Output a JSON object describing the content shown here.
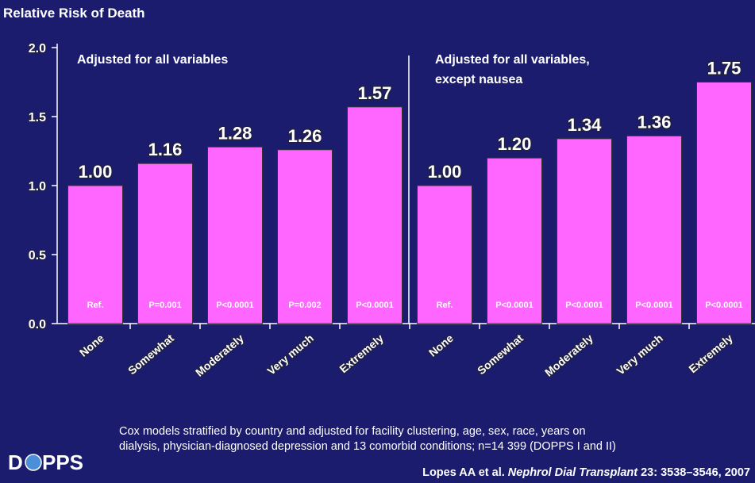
{
  "chart_data": {
    "type": "bar",
    "y_label": "Relative Risk of Death",
    "categories": [
      "None",
      "Somewhat",
      "Moderately",
      "Very much",
      "Extremely",
      "None",
      "Somewhat",
      "Moderately",
      "Very much",
      "Extremely"
    ],
    "values": [
      1,
      1.16,
      1.28,
      1.26,
      1.57,
      1,
      1.2,
      1.34,
      1.36,
      1.75
    ],
    "value_labels": [
      "1.00",
      "1.16",
      "1.28",
      "1.26",
      "1.57",
      "1.00",
      "1.20",
      "1.34",
      "1.36",
      "1.75"
    ],
    "p_labels": [
      "Ref.",
      "P=0.001",
      "P<0.0001",
      "P=0.002",
      "P<0.0001",
      "Ref.",
      "P<0.0001",
      "P<0.0001",
      "P<0.0001",
      "P<0.0001"
    ],
    "panels": [
      {
        "lines": [
          "Adjusted for all variables"
        ]
      },
      {
        "lines": [
          "Adjusted for all variables,",
          "except nausea"
        ]
      }
    ],
    "color": "#ff66ff",
    "ylim": [
      0,
      2
    ],
    "yticks": [
      {
        "value": 0,
        "label": "0.0"
      },
      {
        "value": 0.5,
        "label": "0.5"
      },
      {
        "value": 1,
        "label": "1.0"
      },
      {
        "value": 1.5,
        "label": "1.5"
      },
      {
        "value": 2,
        "label": "2.0"
      }
    ]
  },
  "footnote": [
    "Cox models stratified by country and adjusted for facility clustering, age, sex, race, years on",
    "dialysis, physician-diagnosed depression and 13 comorbid conditions; n=14 399 (DOPPS I and II)"
  ],
  "citation": {
    "authors": "Lopes AA et al. ",
    "journal": "Nephrol  Dial Transplant",
    "ref": " 23: 3538–3546, 2007"
  },
  "logo": {
    "left": "D",
    "right": "PPS"
  }
}
